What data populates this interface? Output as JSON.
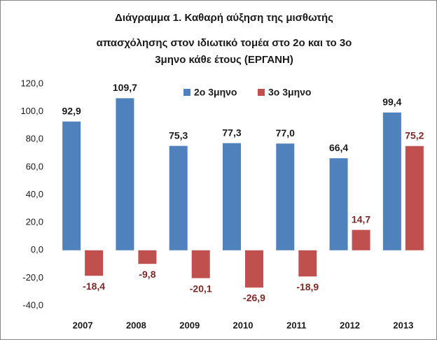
{
  "chart_data": {
    "type": "bar",
    "title": [
      "Διάγραμμα 1. Καθαρή αύξηση της μισθωτής",
      "απασχόλησης στον ιδιωτικό τομέα στο 2ο και το 3ο",
      "3μηνο κάθε έτους (ΕΡΓΑΝΗ)"
    ],
    "categories": [
      "2007",
      "2008",
      "2009",
      "2010",
      "2011",
      "2012",
      "2013"
    ],
    "series": [
      {
        "name": "2ο 3μηνο",
        "color": "#4f81bd",
        "label_color": "#1a1a1a",
        "values": [
          92.9,
          109.7,
          75.3,
          77.3,
          77.0,
          66.4,
          99.4
        ],
        "value_labels": [
          "92,9",
          "109,7",
          "75,3",
          "77,3",
          "77,0",
          "66,4",
          "99,4"
        ]
      },
      {
        "name": "3ο 3μηνο",
        "color": "#c0504d",
        "label_color": "#7b2a28",
        "values": [
          -18.4,
          -9.8,
          -20.1,
          -26.9,
          -18.9,
          14.7,
          75.2
        ],
        "value_labels": [
          "-18,4",
          "-9,8",
          "-20,1",
          "-26,9",
          "-18,9",
          "14,7",
          "75,2"
        ]
      }
    ],
    "ylim": [
      -40,
      120
    ],
    "yticks": [
      {
        "value": -40,
        "label": "-40,0"
      },
      {
        "value": -20,
        "label": "-20,0"
      },
      {
        "value": 0,
        "label": "0,0"
      },
      {
        "value": 20,
        "label": "20,0"
      },
      {
        "value": 40,
        "label": "40,0"
      },
      {
        "value": 60,
        "label": "60,0"
      },
      {
        "value": 80,
        "label": "80,0"
      },
      {
        "value": 100,
        "label": "100,0"
      },
      {
        "value": 120,
        "label": "120,0"
      }
    ],
    "grid": false,
    "legend": "top"
  }
}
